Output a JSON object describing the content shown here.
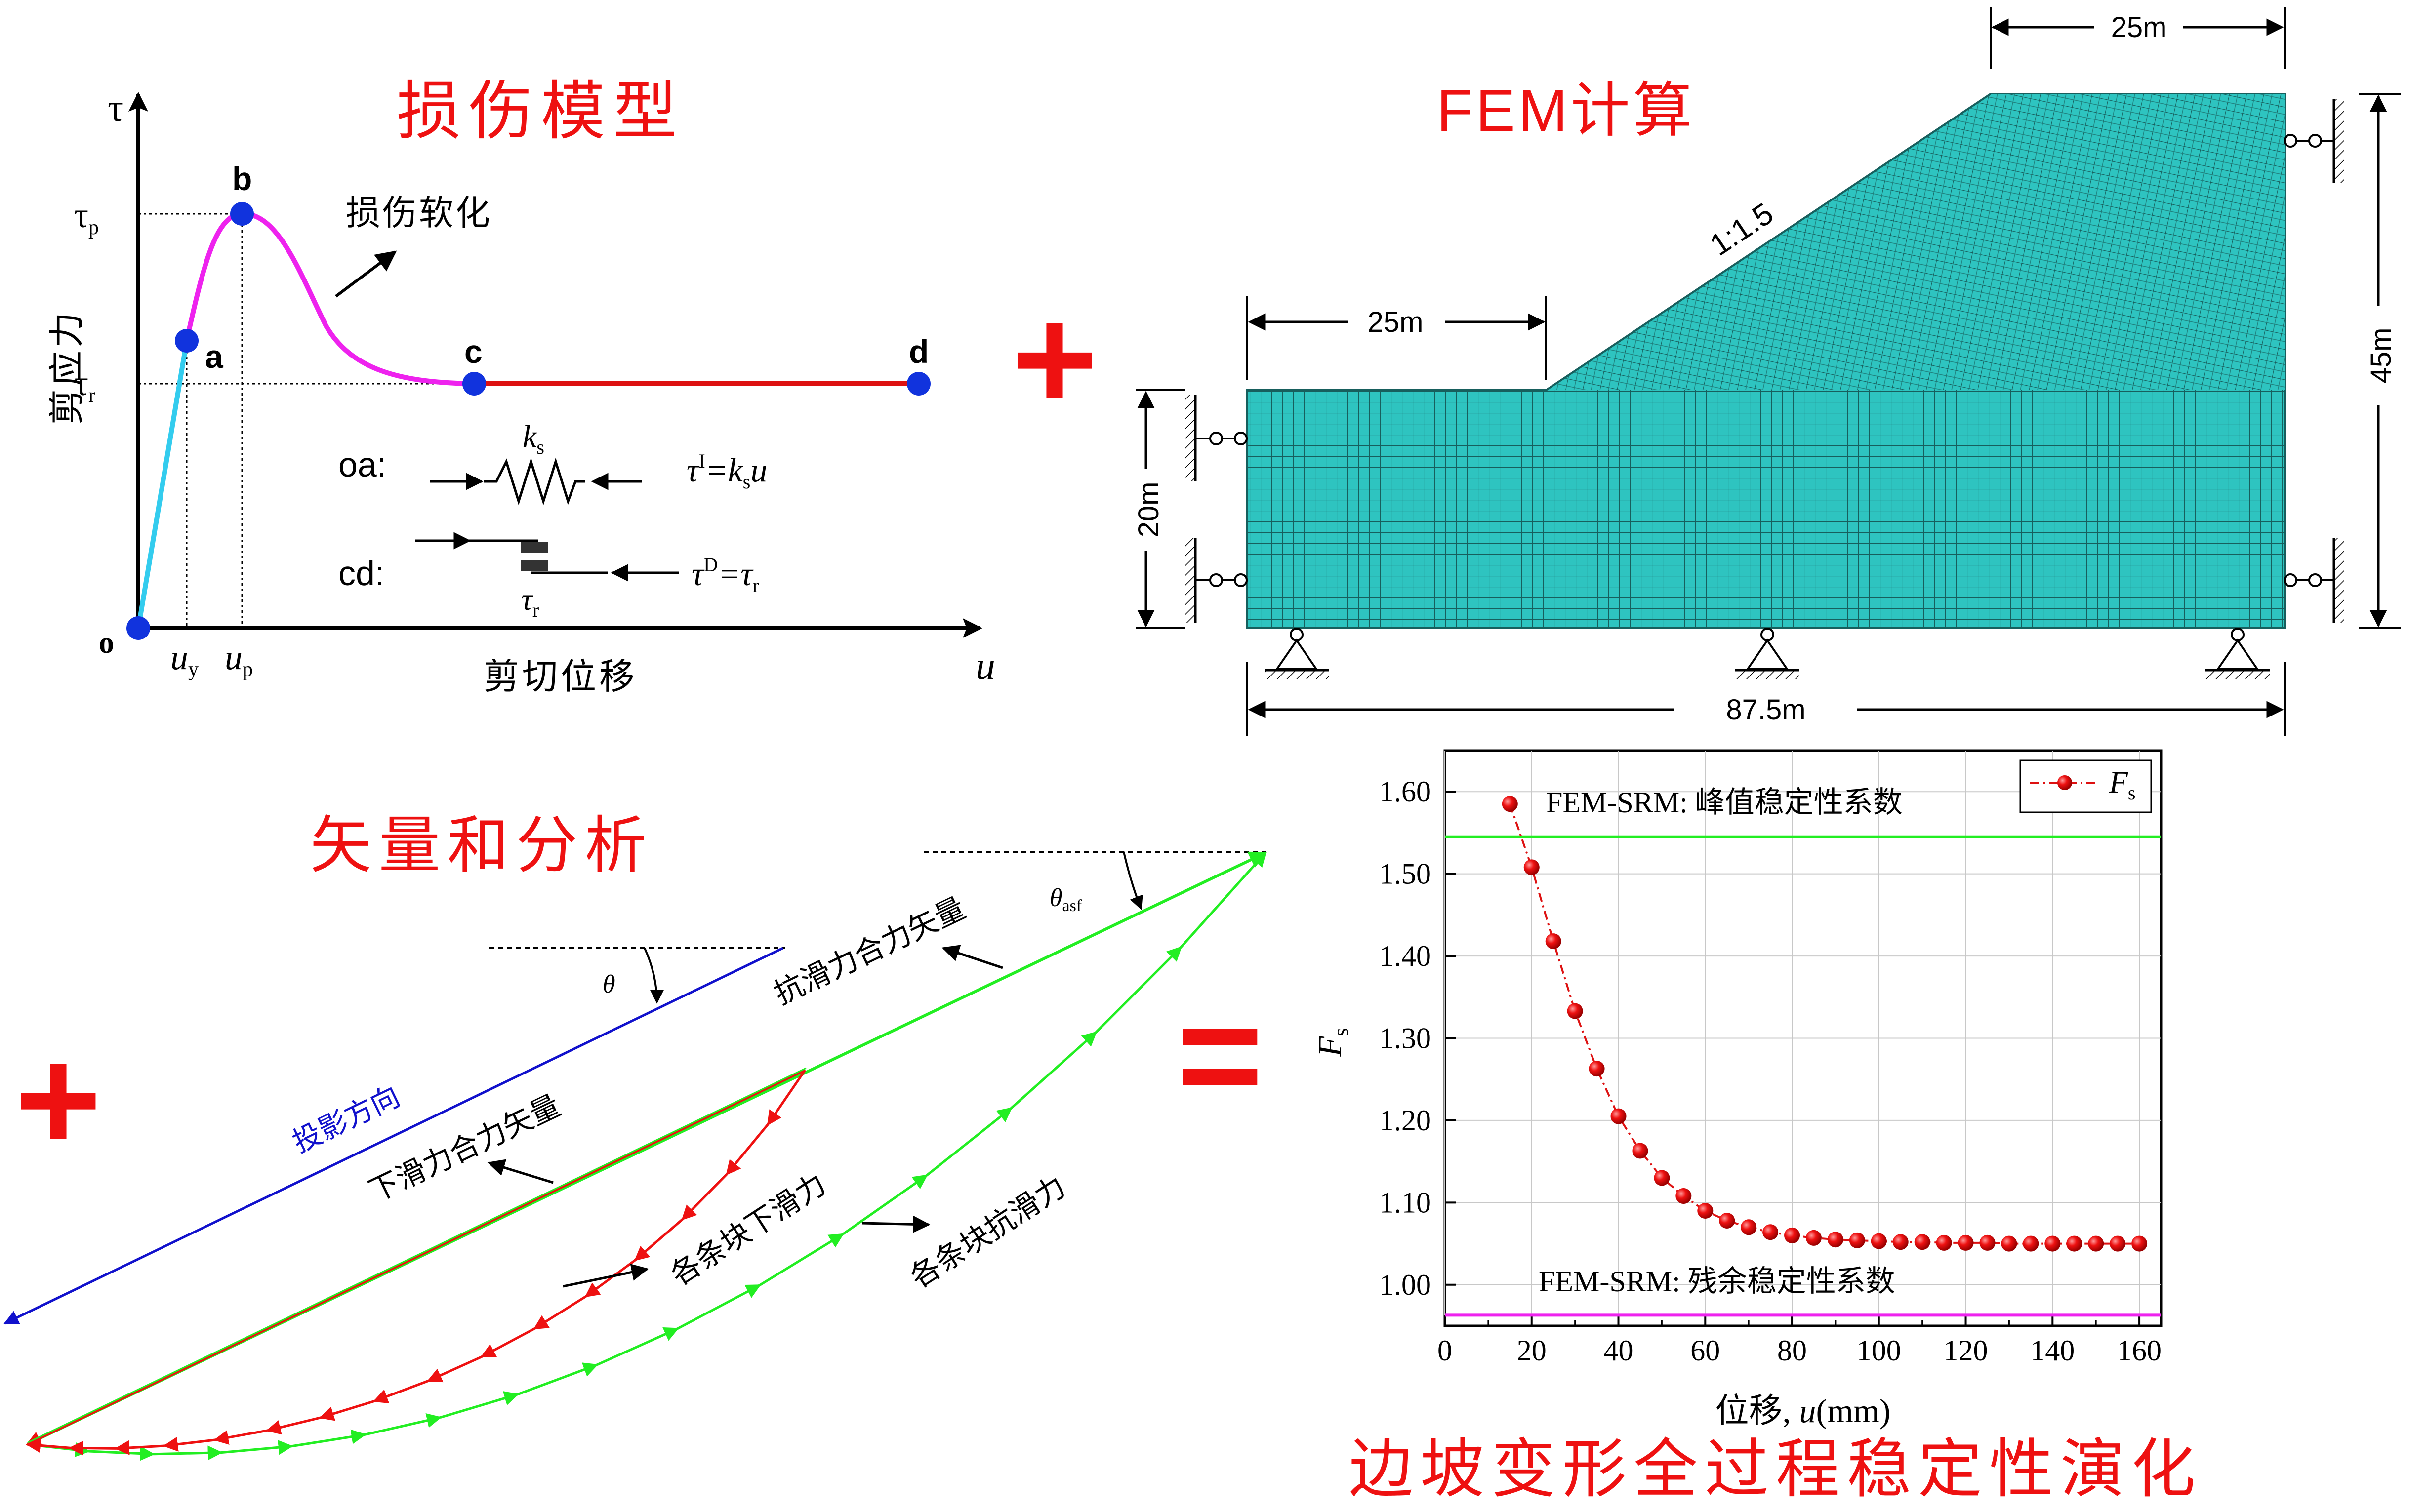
{
  "colors": {
    "title_red": "#ee1111",
    "plus_red": "#ee1111",
    "damage_cyan": "#33ccee",
    "damage_magenta": "#ee22ee",
    "damage_red": "#dd1111",
    "point_blue": "#1133dd",
    "mesh_fill": "#2ec4c0",
    "mesh_line": "#165c5a",
    "green": "#22ee22",
    "red_vec": "#ee1111",
    "blue_vec": "#1111cc",
    "pink_line": "#ee22ee"
  },
  "damage_model": {
    "title": "损伤模型",
    "tau_axis": "τ",
    "u_axis": "u",
    "y_label": "剪应力",
    "x_label": "剪切位移",
    "origin": "o",
    "tau_p": {
      "main": "τ",
      "sub": "p"
    },
    "tau_r": {
      "main": "τ",
      "sub": "r"
    },
    "u_y": {
      "main": "u",
      "sub": "y"
    },
    "u_p": {
      "main": "u",
      "sub": "p"
    },
    "points": {
      "a": "a",
      "b": "b",
      "c": "c",
      "d": "d"
    },
    "softening_label": "损伤软化",
    "oa_label": "oa:",
    "cd_label": "cd:",
    "ks": {
      "main": "k",
      "sub": "s"
    },
    "tau_r_block": {
      "main": "τ",
      "sub": "r"
    },
    "formula_oa": {
      "t1": "τ",
      "sup": "I",
      "t2": "=k",
      "sub": "s",
      "t3": "u"
    },
    "formula_cd": {
      "t1": "τ",
      "sup": "D",
      "t2": "=τ",
      "sub": "r"
    }
  },
  "fem": {
    "title": "FEM计算",
    "slope_ratio": "1:1.5",
    "dim_top": "25m",
    "dim_left": "25m",
    "dim_height_left": "20m",
    "dim_height_right": "45m",
    "dim_bottom": "87.5m"
  },
  "vector": {
    "title": "矢量和分析",
    "projection": "投影方向",
    "theta": "θ",
    "theta_asf": {
      "main": "θ",
      "sub": "asf"
    },
    "resisting_total": "抗滑力合力矢量",
    "sliding_total": "下滑力合力矢量",
    "block_sliding": "各条块下滑力",
    "block_resisting": "各条块抗滑力"
  },
  "symbols": {
    "plus": "+",
    "equals": "="
  },
  "stability": {
    "title": "边坡变形全过程稳定性演化",
    "peak_label": "FEM-SRM: 峰值稳定性系数",
    "residual_label": "FEM-SRM: 残余稳定性系数"
  },
  "chart_data": {
    "type": "line",
    "xlabel_main": "位移, ",
    "xlabel_var": "u",
    "xlabel_unit": "(mm)",
    "ylabel": {
      "main": "F",
      "sub": "s"
    },
    "legend": {
      "main": "F",
      "sub": "s"
    },
    "legend_position": "top-right",
    "xlim": [
      0,
      165
    ],
    "ylim": [
      0.95,
      1.65
    ],
    "xticks": [
      0,
      20,
      40,
      60,
      80,
      100,
      120,
      140,
      160
    ],
    "yticks": [
      1.0,
      1.1,
      1.2,
      1.3,
      1.4,
      1.5,
      1.6
    ],
    "grid": true,
    "peak_value": 1.545,
    "residual_value": 0.963,
    "x": [
      15,
      20,
      25,
      30,
      35,
      40,
      45,
      50,
      55,
      60,
      65,
      70,
      75,
      80,
      85,
      90,
      95,
      100,
      105,
      110,
      115,
      120,
      125,
      130,
      135,
      140,
      145,
      150,
      155,
      160
    ],
    "values": [
      1.585,
      1.508,
      1.418,
      1.333,
      1.263,
      1.205,
      1.163,
      1.13,
      1.108,
      1.09,
      1.078,
      1.07,
      1.064,
      1.06,
      1.057,
      1.055,
      1.054,
      1.053,
      1.052,
      1.052,
      1.051,
      1.051,
      1.051,
      1.05,
      1.05,
      1.05,
      1.05,
      1.05,
      1.05,
      1.05
    ]
  }
}
